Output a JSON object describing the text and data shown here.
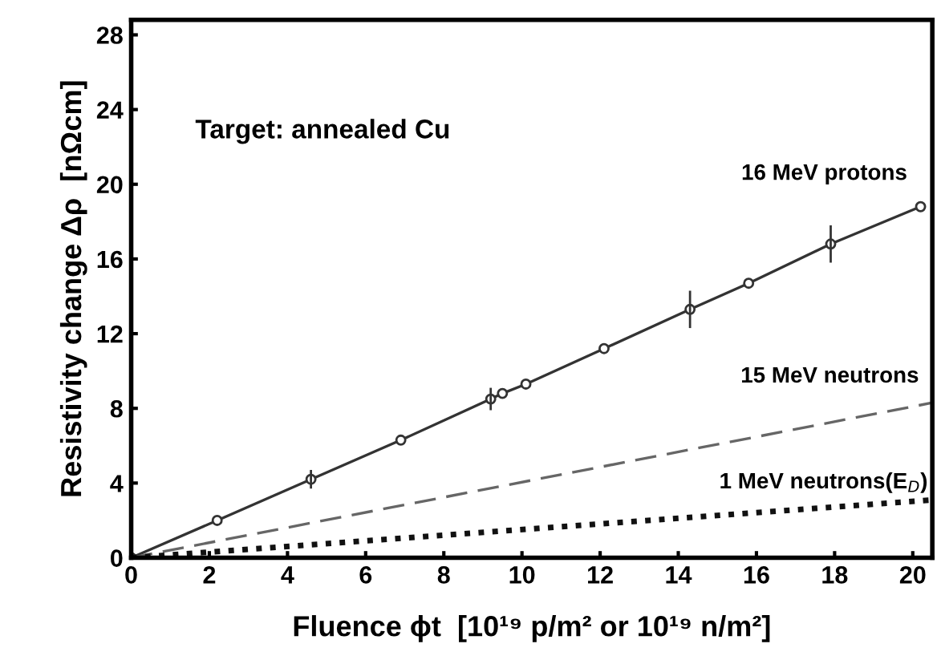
{
  "chart_data": {
    "type": "line",
    "xlabel": "Fluence ϕt  [10¹⁹ p/m² or 10¹⁹ n/m²]",
    "ylabel": "Resistivity change Δρ  [nΩcm]",
    "annotations": [
      "Target: annealed Cu"
    ],
    "xlim": [
      0,
      20.5
    ],
    "ylim": [
      0,
      28.8
    ],
    "xticks": [
      0,
      2,
      4,
      6,
      8,
      10,
      12,
      14,
      16,
      18,
      20
    ],
    "yticks": [
      0,
      4,
      8,
      12,
      16,
      20,
      24,
      28
    ],
    "grid": false,
    "legend": false,
    "series": [
      {
        "name": "16 MeV protons",
        "color": "#333333",
        "line_style": "solid",
        "marker": "circle",
        "x": [
          0,
          2.2,
          4.6,
          6.9,
          9.2,
          9.5,
          10.1,
          12.1,
          14.3,
          15.8,
          17.9,
          20.2
        ],
        "values": [
          0,
          2.0,
          4.2,
          6.3,
          8.5,
          8.8,
          9.3,
          11.2,
          13.3,
          14.7,
          16.8,
          18.8
        ],
        "errors": [
          null,
          null,
          0.5,
          null,
          0.6,
          null,
          null,
          null,
          1.0,
          null,
          1.0,
          null
        ]
      },
      {
        "name": "15 MeV neutrons",
        "color": "#666666",
        "line_style": "dashed",
        "marker": "none",
        "x": [
          0,
          20.5
        ],
        "values": [
          0,
          8.3
        ]
      },
      {
        "name": "1 MeV neutrons(E$_{D}$)",
        "color": "#111111",
        "line_style": "dotted",
        "marker": "none",
        "x": [
          0,
          20.5
        ],
        "values": [
          0,
          3.1
        ]
      }
    ]
  }
}
